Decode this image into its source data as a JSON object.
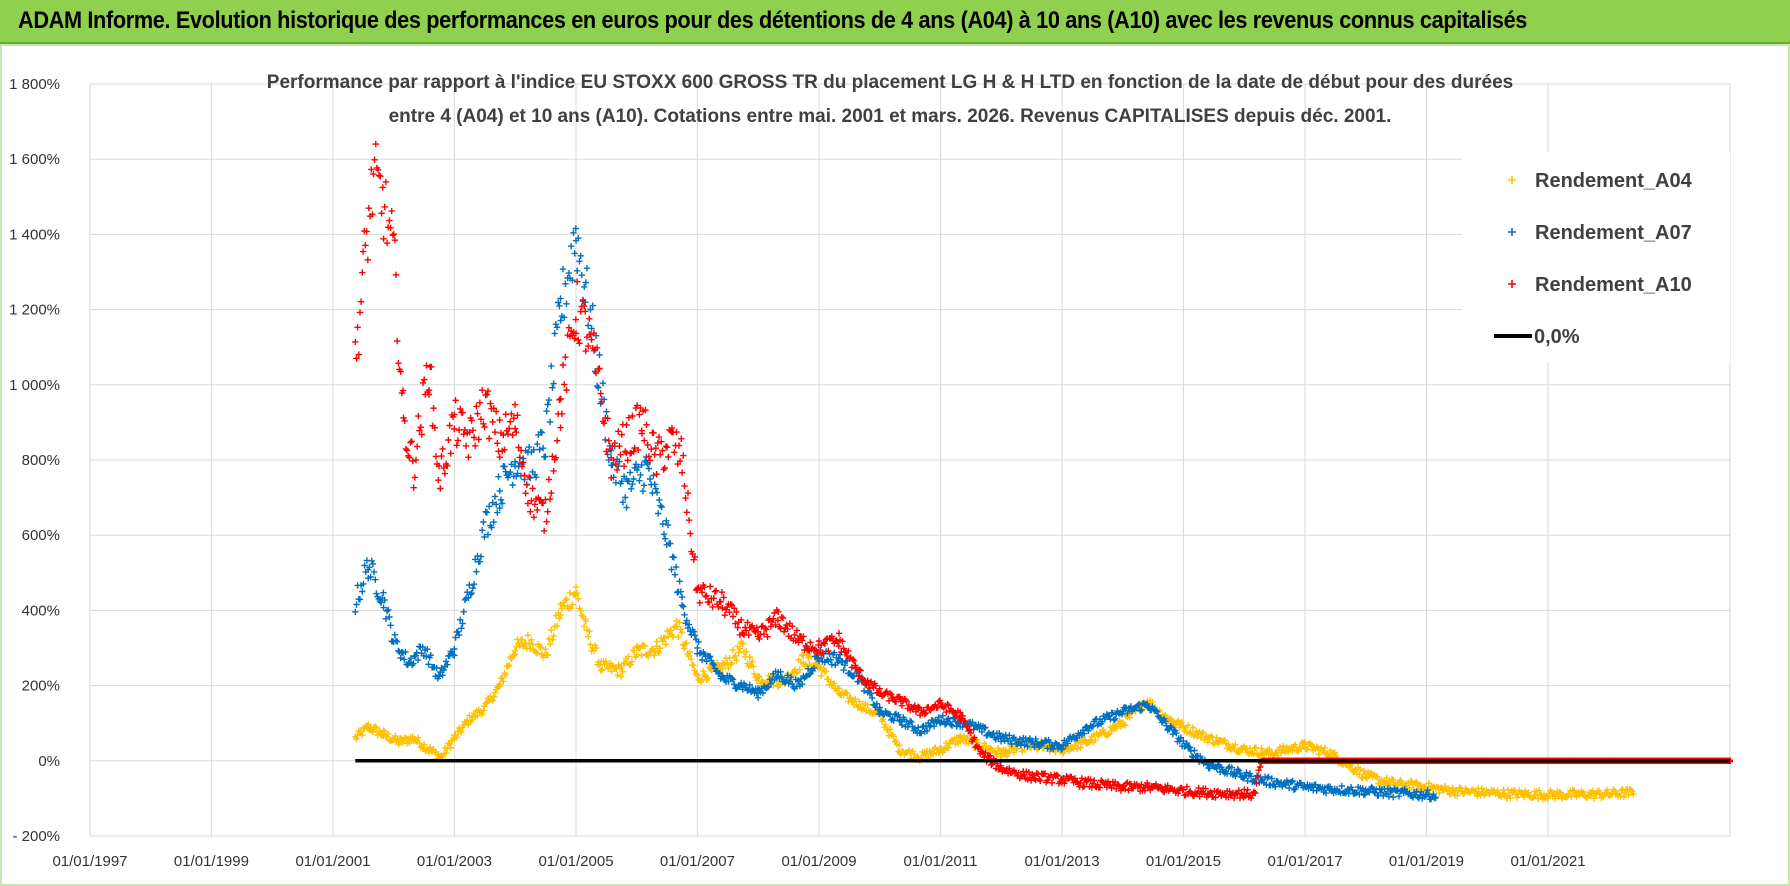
{
  "header": {
    "title": "ADAM Informe. Evolution historique des performances en euros pour des détentions de 4 ans (A04) à 10 ans (A10) avec les revenus connus capitalisés"
  },
  "chart_data": {
    "type": "scatter",
    "title_lines": [
      "Performance par rapport à l'indice EU STOXX 600 GROSS TR  du placement LG H & H LTD en fonction de la date de début pour des durées",
      "entre 4 (A04) et 10 ans (A10).  Cotations entre mai. 2001 et mars. 2026. Revenus CAPITALISES depuis déc. 2001."
    ],
    "xlabel": "",
    "ylabel": "",
    "x_range": [
      "1997-01-01",
      "2023-12-31"
    ],
    "x_tick_labels": [
      "01/01/1997",
      "01/01/1999",
      "01/01/2001",
      "01/01/2003",
      "01/01/2005",
      "01/01/2007",
      "01/01/2009",
      "01/01/2011",
      "01/01/2013",
      "01/01/2015",
      "01/01/2017",
      "01/01/2019",
      "01/01/2021"
    ],
    "x_tick_dates": [
      "1997-01-01",
      "1999-01-01",
      "2001-01-01",
      "2003-01-01",
      "2005-01-01",
      "2007-01-01",
      "2009-01-01",
      "2011-01-01",
      "2013-01-01",
      "2015-01-01",
      "2017-01-01",
      "2019-01-01",
      "2021-01-01"
    ],
    "ylim": [
      -200,
      1800
    ],
    "y_ticks": [
      -200,
      0,
      200,
      400,
      600,
      800,
      1000,
      1200,
      1400,
      1600,
      1800
    ],
    "y_tick_labels": [
      "- 200%",
      "0%",
      "200%",
      "400%",
      "600%",
      "800%",
      "1 000%",
      "1 200%",
      "1 400%",
      "1 600%",
      "1 800%"
    ],
    "grid": true,
    "legend_position": "top-right",
    "reference_line": {
      "name": "0,0%",
      "value": 0,
      "from": "2001-05-15",
      "to": "2023-12-31",
      "color": "#000000"
    },
    "series": [
      {
        "name": "Rendement_A04",
        "color": "#ffc000",
        "points": [
          [
            "2001-05-15",
            60
          ],
          [
            "2001-08-01",
            90
          ],
          [
            "2001-11-01",
            70
          ],
          [
            "2002-02-01",
            50
          ],
          [
            "2002-05-01",
            60
          ],
          [
            "2002-08-01",
            30
          ],
          [
            "2002-10-15",
            10
          ],
          [
            "2003-01-01",
            60
          ],
          [
            "2003-04-01",
            110
          ],
          [
            "2003-07-01",
            140
          ],
          [
            "2003-10-01",
            200
          ],
          [
            "2004-01-01",
            300
          ],
          [
            "2004-04-01",
            320
          ],
          [
            "2004-07-01",
            280
          ],
          [
            "2004-10-01",
            400
          ],
          [
            "2005-01-01",
            450
          ],
          [
            "2005-03-01",
            350
          ],
          [
            "2005-06-01",
            250
          ],
          [
            "2005-10-01",
            240
          ],
          [
            "2006-01-01",
            290
          ],
          [
            "2006-05-01",
            300
          ],
          [
            "2006-09-01",
            360
          ],
          [
            "2007-01-01",
            220
          ],
          [
            "2007-06-01",
            250
          ],
          [
            "2007-10-01",
            300
          ],
          [
            "2008-01-01",
            220
          ],
          [
            "2008-06-01",
            210
          ],
          [
            "2008-10-01",
            270
          ],
          [
            "2009-01-01",
            250
          ],
          [
            "2009-05-01",
            180
          ],
          [
            "2009-09-01",
            150
          ],
          [
            "2010-01-01",
            120
          ],
          [
            "2010-05-01",
            30
          ],
          [
            "2010-09-01",
            10
          ],
          [
            "2011-01-01",
            30
          ],
          [
            "2011-05-01",
            60
          ],
          [
            "2011-09-01",
            40
          ],
          [
            "2012-01-01",
            20
          ],
          [
            "2012-06-01",
            40
          ],
          [
            "2013-01-01",
            30
          ],
          [
            "2013-06-01",
            50
          ],
          [
            "2014-01-01",
            100
          ],
          [
            "2014-06-01",
            160
          ],
          [
            "2014-09-01",
            120
          ],
          [
            "2015-01-01",
            90
          ],
          [
            "2015-06-01",
            60
          ],
          [
            "2016-01-01",
            30
          ],
          [
            "2016-06-01",
            20
          ],
          [
            "2017-01-01",
            40
          ],
          [
            "2017-06-01",
            20
          ],
          [
            "2018-01-01",
            -40
          ],
          [
            "2018-06-01",
            -60
          ],
          [
            "2019-01-01",
            -70
          ],
          [
            "2019-06-01",
            -80
          ],
          [
            "2020-01-01",
            -85
          ],
          [
            "2020-06-01",
            -88
          ],
          [
            "2021-01-01",
            -90
          ],
          [
            "2021-06-01",
            -90
          ],
          [
            "2022-01-01",
            -88
          ],
          [
            "2022-06-01",
            -85
          ]
        ]
      },
      {
        "name": "Rendement_A07",
        "color": "#0070c0",
        "points": [
          [
            "2001-05-15",
            420
          ],
          [
            "2001-08-01",
            520
          ],
          [
            "2001-11-01",
            430
          ],
          [
            "2002-01-01",
            320
          ],
          [
            "2002-04-01",
            260
          ],
          [
            "2002-07-01",
            300
          ],
          [
            "2002-10-01",
            220
          ],
          [
            "2003-01-01",
            300
          ],
          [
            "2003-04-01",
            450
          ],
          [
            "2003-07-01",
            620
          ],
          [
            "2003-10-01",
            720
          ],
          [
            "2004-01-01",
            800
          ],
          [
            "2004-04-01",
            780
          ],
          [
            "2004-07-01",
            850
          ],
          [
            "2004-10-01",
            1200
          ],
          [
            "2005-01-01",
            1400
          ],
          [
            "2005-03-01",
            1250
          ],
          [
            "2005-05-01",
            1080
          ],
          [
            "2005-08-01",
            800
          ],
          [
            "2005-11-01",
            720
          ],
          [
            "2006-03-01",
            780
          ],
          [
            "2006-07-01",
            600
          ],
          [
            "2006-10-01",
            420
          ],
          [
            "2007-01-01",
            300
          ],
          [
            "2007-06-01",
            220
          ],
          [
            "2007-10-01",
            200
          ],
          [
            "2008-01-01",
            180
          ],
          [
            "2008-05-01",
            230
          ],
          [
            "2008-09-01",
            200
          ],
          [
            "2009-01-01",
            280
          ],
          [
            "2009-05-01",
            270
          ],
          [
            "2009-09-01",
            220
          ],
          [
            "2010-01-01",
            130
          ],
          [
            "2010-05-01",
            110
          ],
          [
            "2010-09-01",
            80
          ],
          [
            "2011-01-01",
            110
          ],
          [
            "2011-06-01",
            100
          ],
          [
            "2012-01-01",
            60
          ],
          [
            "2012-06-01",
            50
          ],
          [
            "2013-01-01",
            40
          ],
          [
            "2013-06-01",
            90
          ],
          [
            "2014-01-01",
            130
          ],
          [
            "2014-06-01",
            150
          ],
          [
            "2014-10-01",
            90
          ],
          [
            "2015-02-01",
            30
          ],
          [
            "2015-06-01",
            -10
          ],
          [
            "2016-01-01",
            -40
          ],
          [
            "2016-06-01",
            -55
          ],
          [
            "2017-01-01",
            -70
          ],
          [
            "2017-06-01",
            -75
          ],
          [
            "2018-01-01",
            -80
          ],
          [
            "2018-06-01",
            -85
          ],
          [
            "2019-01-01",
            -90
          ],
          [
            "2019-03-01",
            -92
          ]
        ]
      },
      {
        "name": "Rendement_A10",
        "color": "#ff0000",
        "points": [
          [
            "2001-05-15",
            1050
          ],
          [
            "2001-07-01",
            1300
          ],
          [
            "2001-09-01",
            1550
          ],
          [
            "2001-11-01",
            1480
          ],
          [
            "2002-01-01",
            1350
          ],
          [
            "2002-03-01",
            900
          ],
          [
            "2002-05-01",
            780
          ],
          [
            "2002-08-01",
            1050
          ],
          [
            "2002-10-01",
            750
          ],
          [
            "2003-01-01",
            900
          ],
          [
            "2003-04-01",
            850
          ],
          [
            "2003-07-01",
            950
          ],
          [
            "2003-10-01",
            850
          ],
          [
            "2004-01-01",
            900
          ],
          [
            "2004-04-01",
            700
          ],
          [
            "2004-07-01",
            650
          ],
          [
            "2004-10-01",
            950
          ],
          [
            "2005-01-01",
            1200
          ],
          [
            "2005-03-01",
            1150
          ],
          [
            "2005-05-01",
            1050
          ],
          [
            "2005-08-01",
            800
          ],
          [
            "2005-11-01",
            850
          ],
          [
            "2006-02-01",
            900
          ],
          [
            "2006-05-01",
            800
          ],
          [
            "2006-08-01",
            850
          ],
          [
            "2006-10-01",
            800
          ],
          [
            "2007-01-01",
            450
          ],
          [
            "2007-06-01",
            420
          ],
          [
            "2007-10-01",
            350
          ],
          [
            "2008-01-01",
            330
          ],
          [
            "2008-05-01",
            380
          ],
          [
            "2008-09-01",
            320
          ],
          [
            "2009-01-01",
            300
          ],
          [
            "2009-05-01",
            320
          ],
          [
            "2009-09-01",
            230
          ],
          [
            "2010-01-01",
            180
          ],
          [
            "2010-05-01",
            160
          ],
          [
            "2010-09-01",
            130
          ],
          [
            "2011-01-01",
            150
          ],
          [
            "2011-05-01",
            120
          ],
          [
            "2011-09-01",
            20
          ],
          [
            "2012-01-01",
            -20
          ],
          [
            "2012-06-01",
            -40
          ],
          [
            "2013-01-01",
            -50
          ],
          [
            "2013-06-01",
            -60
          ],
          [
            "2014-01-01",
            -70
          ],
          [
            "2014-06-01",
            -70
          ],
          [
            "2015-01-01",
            -80
          ],
          [
            "2015-06-01",
            -85
          ],
          [
            "2016-01-01",
            -88
          ],
          [
            "2016-03-01",
            -90
          ],
          [
            "2016-04-15",
            0
          ],
          [
            "2018-01-01",
            0
          ],
          [
            "2020-01-01",
            0
          ],
          [
            "2022-01-01",
            0
          ],
          [
            "2023-12-31",
            0
          ]
        ]
      }
    ]
  }
}
